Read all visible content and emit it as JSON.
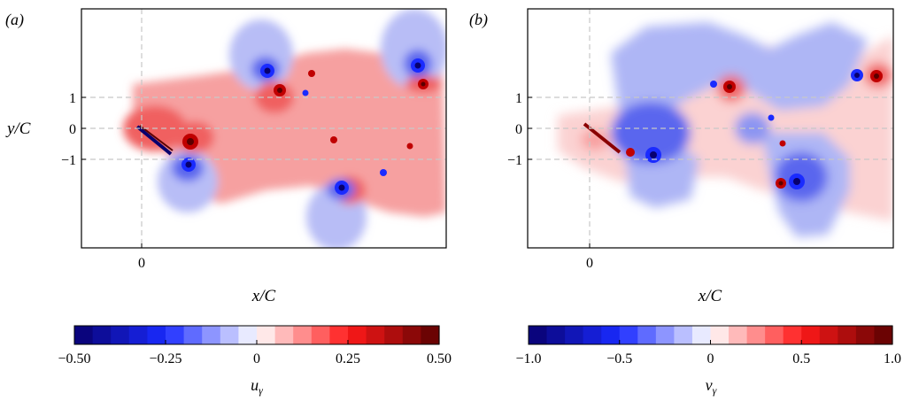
{
  "colormap": {
    "neg_dark": "#08006e",
    "neg_mid": "#1a2bff",
    "neutral": "#ffffff",
    "pos_mid": "#ff1a1a",
    "pos_dark": "#5a0000",
    "grid_line": "#c8c8c8"
  },
  "chart_data": [
    {
      "type": "heatmap",
      "panel_label": "(a)",
      "xlabel": "x/C",
      "ylabel": "y/C",
      "x_ticks": [
        0
      ],
      "y_ticks": [
        1,
        0,
        -1
      ],
      "xlim": [
        -1.9,
        9.8
      ],
      "ylim": [
        -3.7,
        3.7
      ],
      "grid": "dashed at x=0, y=-1, 0, 1",
      "colorbar": {
        "label": "u_γ",
        "ticks": [
          "−0.50",
          "−0.25",
          "0",
          "0.25",
          "0.50"
        ],
        "range": [
          -0.5,
          0.5
        ],
        "levels": 20
      },
      "features": [
        {
          "x": 0.0,
          "y": 0.0,
          "strength": 0.5,
          "width": 0.6
        },
        {
          "x": 1.7,
          "y": -0.5,
          "strength": 0.5,
          "width": 0.5
        },
        {
          "x": 1.6,
          "y": -1.3,
          "strength": -0.5,
          "width": 0.55
        },
        {
          "x": 3.7,
          "y": 2.1,
          "strength": -0.5,
          "width": 0.55
        },
        {
          "x": 4.4,
          "y": 1.3,
          "strength": 0.5,
          "width": 0.5
        },
        {
          "x": 6.4,
          "y": -2.0,
          "strength": -0.5,
          "width": 0.55
        },
        {
          "x": 8.6,
          "y": 2.2,
          "strength": -0.5,
          "width": 0.5
        },
        {
          "x": 9.2,
          "y": 1.5,
          "strength": 0.5,
          "width": 0.45
        }
      ]
    },
    {
      "type": "heatmap",
      "panel_label": "(b)",
      "xlabel": "x/C",
      "ylabel": "",
      "x_ticks": [
        0
      ],
      "y_ticks": [
        1,
        0,
        -1
      ],
      "xlim": [
        -1.9,
        9.8
      ],
      "ylim": [
        -3.7,
        3.7
      ],
      "grid": "dashed at x=0, y=-1, 0, 1",
      "colorbar": {
        "label": "v_γ",
        "ticks": [
          "−1.0",
          "−0.5",
          "0",
          "0.5",
          "1.0"
        ],
        "range": [
          -1.0,
          1.0
        ],
        "levels": 20
      },
      "features": [
        {
          "x": 0.2,
          "y": -0.4,
          "strength": 1.0,
          "width": 0.5
        },
        {
          "x": 1.8,
          "y": -0.8,
          "strength": -1.0,
          "width": 0.55
        },
        {
          "x": 4.3,
          "y": 1.4,
          "strength": 1.0,
          "width": 0.5
        },
        {
          "x": 6.1,
          "y": -1.9,
          "strength": 1.0,
          "width": 0.5
        },
        {
          "x": 6.8,
          "y": -1.8,
          "strength": -1.0,
          "width": 0.55
        },
        {
          "x": 9.0,
          "y": 1.6,
          "strength": 1.0,
          "width": 0.45
        }
      ]
    }
  ]
}
